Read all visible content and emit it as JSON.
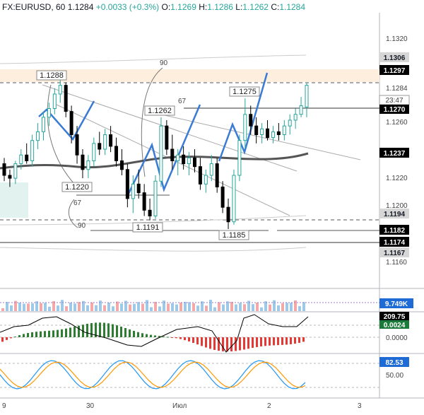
{
  "header": {
    "symbol": "FX:EURUSD, 60",
    "price": "1.1284",
    "change": "+0.0033 (+0.3%)",
    "o_label": "O:",
    "o": "1.1269",
    "h_label": "H:",
    "h": "1.1286",
    "l_label": "L:",
    "l": "1.1262",
    "c_label": "C:",
    "c": "1.1284"
  },
  "chart_data": {
    "type": "candlestick",
    "y_range": [
      1.1148,
      1.1333
    ],
    "price_axis_ticks": [
      "1.1320",
      "1.1284",
      "1.1260",
      "1.1220",
      "1.1200",
      "1.1160"
    ],
    "price_badges": [
      {
        "value": "1.1306",
        "bg": "#d6d6d6",
        "fg": "#131722"
      },
      {
        "value": "1.1297",
        "bg": "#000000",
        "fg": "#ffffff"
      },
      {
        "value": "1.1270",
        "bg": "#000000",
        "fg": "#ffffff"
      },
      {
        "value": "1.1237",
        "bg": "#000000",
        "fg": "#ffffff"
      },
      {
        "value": "1.1194",
        "bg": "#d6d6d6",
        "fg": "#131722"
      },
      {
        "value": "1.1182",
        "bg": "#000000",
        "fg": "#ffffff"
      },
      {
        "value": "1.1174",
        "bg": "#000000",
        "fg": "#ffffff"
      },
      {
        "value": "1.1167",
        "bg": "#d6d6d6",
        "fg": "#131722"
      }
    ],
    "countdown": "23:47",
    "x_labels": [
      "9",
      "30",
      "Июл",
      "2",
      "3"
    ],
    "pivot_labels": [
      {
        "text": "1.1288",
        "price": 1.1288
      },
      {
        "text": "1.1262",
        "price": 1.1262
      },
      {
        "text": "1.1275",
        "price": 1.1275
      },
      {
        "text": "1.1220",
        "price": 1.122
      },
      {
        "text": "1.1191",
        "price": 1.1191
      },
      {
        "text": "1.1185",
        "price": 1.1185
      }
    ],
    "angle_labels": [
      "90",
      "67",
      "67",
      "90"
    ],
    "volume": {
      "label": "9.749K"
    },
    "macd": {
      "labels": [
        "209.75",
        "0.0024",
        "0.0000"
      ]
    },
    "stochastic": {
      "labels": [
        "82.53",
        "50.00"
      ]
    },
    "candles": [
      [
        1.123,
        1.1234,
        1.1218,
        1.1222
      ],
      [
        1.1222,
        1.1226,
        1.1214,
        1.122
      ],
      [
        1.122,
        1.1232,
        1.1216,
        1.123
      ],
      [
        1.123,
        1.124,
        1.1226,
        1.1236
      ],
      [
        1.1236,
        1.1244,
        1.123,
        1.1232
      ],
      [
        1.1232,
        1.125,
        1.1228,
        1.1246
      ],
      [
        1.1246,
        1.1258,
        1.124,
        1.1252
      ],
      [
        1.1252,
        1.1266,
        1.1246,
        1.1262
      ],
      [
        1.1262,
        1.1272,
        1.1256,
        1.1268
      ],
      [
        1.1268,
        1.1282,
        1.1264,
        1.1278
      ],
      [
        1.1278,
        1.1288,
        1.1272,
        1.1284
      ],
      [
        1.1284,
        1.1286,
        1.1262,
        1.1266
      ],
      [
        1.1266,
        1.127,
        1.1244,
        1.125
      ],
      [
        1.125,
        1.1256,
        1.123,
        1.1236
      ],
      [
        1.1236,
        1.124,
        1.122,
        1.1226
      ],
      [
        1.1226,
        1.1236,
        1.122,
        1.1232
      ],
      [
        1.1232,
        1.1248,
        1.1228,
        1.1244
      ],
      [
        1.1244,
        1.1252,
        1.1236,
        1.124
      ],
      [
        1.124,
        1.1254,
        1.1236,
        1.125
      ],
      [
        1.125,
        1.1256,
        1.1238,
        1.1242
      ],
      [
        1.1242,
        1.1248,
        1.1228,
        1.1232
      ],
      [
        1.1232,
        1.124,
        1.1222,
        1.1226
      ],
      [
        1.1226,
        1.123,
        1.12,
        1.1206
      ],
      [
        1.1206,
        1.1222,
        1.1196,
        1.1216
      ],
      [
        1.1216,
        1.1226,
        1.1206,
        1.121
      ],
      [
        1.121,
        1.1216,
        1.1194,
        1.1198
      ],
      [
        1.1198,
        1.1206,
        1.1191,
        1.1194
      ],
      [
        1.1194,
        1.1222,
        1.1192,
        1.1218
      ],
      [
        1.1218,
        1.1262,
        1.1214,
        1.1256
      ],
      [
        1.1256,
        1.126,
        1.1236,
        1.124
      ],
      [
        1.124,
        1.125,
        1.1226,
        1.1232
      ],
      [
        1.1232,
        1.124,
        1.1222,
        1.1236
      ],
      [
        1.1236,
        1.1242,
        1.1226,
        1.123
      ],
      [
        1.123,
        1.1238,
        1.1222,
        1.1234
      ],
      [
        1.1234,
        1.124,
        1.1224,
        1.1228
      ],
      [
        1.1228,
        1.1234,
        1.1212,
        1.1216
      ],
      [
        1.1216,
        1.1226,
        1.121,
        1.1222
      ],
      [
        1.1222,
        1.1236,
        1.1218,
        1.123
      ],
      [
        1.123,
        1.1234,
        1.121,
        1.1214
      ],
      [
        1.1214,
        1.1218,
        1.1196,
        1.12
      ],
      [
        1.12,
        1.1206,
        1.1185,
        1.119
      ],
      [
        1.119,
        1.1226,
        1.1188,
        1.1222
      ],
      [
        1.1222,
        1.125,
        1.1218,
        1.1246
      ],
      [
        1.1246,
        1.1275,
        1.124,
        1.1264
      ],
      [
        1.1264,
        1.127,
        1.125,
        1.1256
      ],
      [
        1.1256,
        1.1262,
        1.1244,
        1.125
      ],
      [
        1.125,
        1.1258,
        1.1244,
        1.1254
      ],
      [
        1.1254,
        1.126,
        1.1246,
        1.1248
      ],
      [
        1.1248,
        1.1256,
        1.1244,
        1.1252
      ],
      [
        1.1252,
        1.1258,
        1.1246,
        1.125
      ],
      [
        1.125,
        1.126,
        1.1246,
        1.1256
      ],
      [
        1.1256,
        1.1264,
        1.125,
        1.126
      ],
      [
        1.126,
        1.1268,
        1.1254,
        1.1264
      ],
      [
        1.1264,
        1.1276,
        1.1262,
        1.127
      ],
      [
        1.1269,
        1.1286,
        1.1262,
        1.1284
      ]
    ]
  },
  "colors": {
    "up": "#26a69a",
    "down": "#000000",
    "ma": "#555555",
    "harmonic": "#3a7bd5",
    "macd_up": "#2e7d32",
    "macd_down": "#e53935",
    "stoch_k": "#2196f3",
    "stoch_d": "#ff9800"
  }
}
